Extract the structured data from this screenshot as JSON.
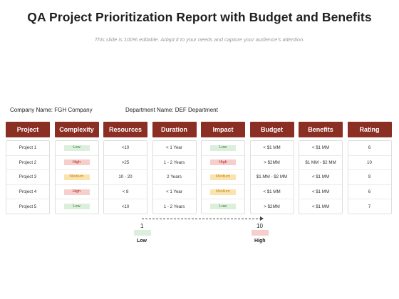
{
  "title": "QA Project Prioritization Report with Budget and Benefits",
  "subtitle": "This slide is 100% editable. Adapt it to your needs and capture your audience's attention.",
  "company": "Company Name: FGH Company",
  "department": "Department Name: DEF Department",
  "colors": {
    "header": "#8b2e23",
    "low": "#dcefdc",
    "high": "#f6cfcc",
    "medium": "#fbe3b0"
  },
  "columns": [
    {
      "header": "Project",
      "cells": [
        "Project 1",
        "Project 2",
        "Project 3",
        "Project 4",
        "Project 5"
      ]
    },
    {
      "header": "Complexity",
      "level": true,
      "cells": [
        "Low",
        "High",
        "Medium",
        "High",
        "Low"
      ]
    },
    {
      "header": "Resources",
      "cells": [
        "<10",
        ">25",
        "10 - 20",
        "< 8",
        "<10"
      ]
    },
    {
      "header": "Duration",
      "cells": [
        "< 1 Year",
        "1 - 2 Years",
        "2 Years",
        "< 1 Year",
        "1 - 2 Years"
      ]
    },
    {
      "header": "Impact",
      "level": true,
      "cells": [
        "Low",
        "High",
        "Medium",
        "Medium",
        "Low"
      ]
    },
    {
      "header": "Budget",
      "cells": [
        "< $1 MM",
        "> $2MM",
        "$1 MM - $2 MM",
        "< $1 MM",
        "> $2MM"
      ]
    },
    {
      "header": "Benefits",
      "cells": [
        "< $1 MM",
        "$1 MM - $2 MM",
        "< $1 MM",
        "< $1 MM",
        "< $1 MM"
      ]
    },
    {
      "header": "Rating",
      "cells": [
        "6",
        "10",
        "9",
        "6",
        "7"
      ]
    }
  ],
  "scale": {
    "low_value": "1",
    "high_value": "10",
    "low_label": "Low",
    "high_label": "High"
  }
}
